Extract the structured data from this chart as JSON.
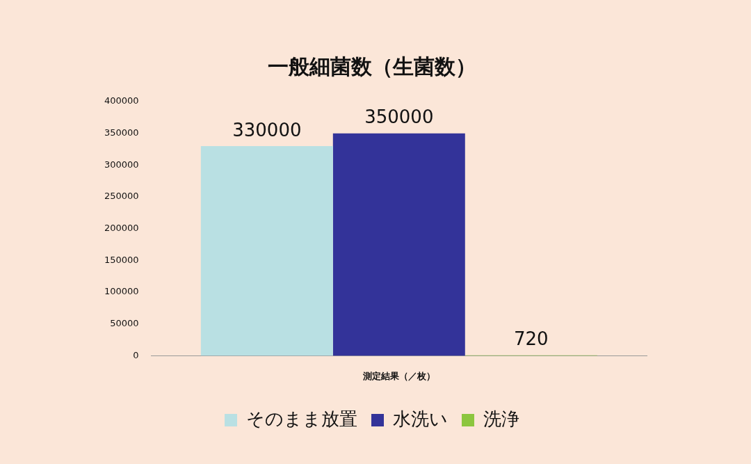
{
  "chart_data": {
    "type": "bar",
    "title": "一般細菌数（生菌数）",
    "categories": [
      "測定結果（／枚）"
    ],
    "series": [
      {
        "name": "そのまま放置",
        "color": "#b9e0e3",
        "values": [
          330000
        ]
      },
      {
        "name": "水洗い",
        "color": "#333399",
        "values": [
          350000
        ]
      },
      {
        "name": "洗浄",
        "color": "#8cc63f",
        "values": [
          720
        ]
      }
    ],
    "ylim": [
      0,
      400000
    ],
    "yticks": [
      0,
      50000,
      100000,
      150000,
      200000,
      250000,
      300000,
      350000,
      400000
    ],
    "grid": false,
    "legend": "bottom",
    "data_labels": true
  }
}
